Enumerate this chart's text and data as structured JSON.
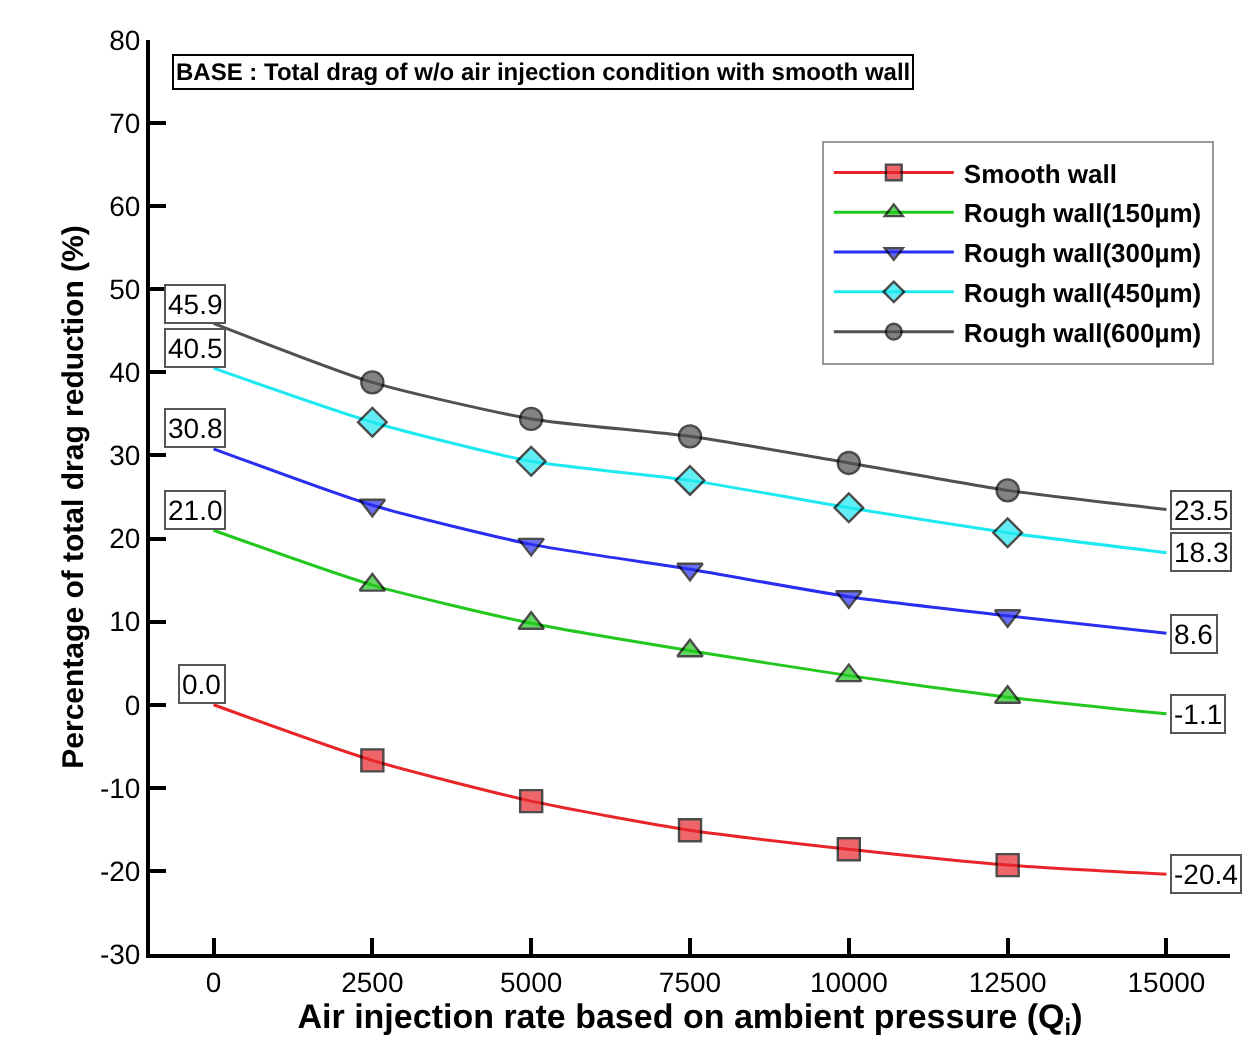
{
  "chart_data": {
    "type": "line",
    "xlabel": "Air injection rate based on ambient pressure (Q$_{i}$)",
    "ylabel": "Percentage of total drag reduction (%)",
    "x": [
      0,
      2500,
      5000,
      7500,
      10000,
      12500,
      15000
    ],
    "series": [
      {
        "name": "Smooth wall",
        "color": "#e8262a",
        "marker": "square",
        "values": [
          0.0,
          -6.7,
          -11.6,
          -15.1,
          -17.4,
          -19.3,
          -20.4
        ],
        "value_labels": [
          "0.0",
          null,
          null,
          null,
          null,
          null,
          "-20.4"
        ]
      },
      {
        "name": "Rough wall(150µm)",
        "color": "#22c81e",
        "marker": "triangle",
        "values": [
          21.0,
          14.4,
          9.8,
          6.5,
          3.5,
          0.9,
          -1.1
        ],
        "value_labels": [
          "21.0",
          null,
          null,
          null,
          null,
          null,
          "-1.1"
        ]
      },
      {
        "name": "Rough wall(300µm)",
        "color": "#2a2ef0",
        "marker": "triangle-down",
        "values": [
          30.8,
          24.0,
          19.3,
          16.3,
          13.0,
          10.7,
          8.6
        ],
        "value_labels": [
          "30.8",
          null,
          null,
          null,
          null,
          null,
          "8.6"
        ]
      },
      {
        "name": "Rough wall(450µm)",
        "color": "#1ee8f0",
        "marker": "diamond",
        "values": [
          40.5,
          34.0,
          29.3,
          27.0,
          23.7,
          20.7,
          18.3
        ],
        "value_labels": [
          "40.5",
          null,
          null,
          null,
          null,
          null,
          "18.3"
        ]
      },
      {
        "name": "Rough wall(600µm)",
        "color": "#505050",
        "marker": "circle",
        "values": [
          45.9,
          38.8,
          34.4,
          32.3,
          29.1,
          25.8,
          23.5
        ],
        "value_labels": [
          "45.9",
          null,
          null,
          null,
          null,
          null,
          "23.5"
        ]
      }
    ],
    "xlim": [
      -1000,
      16000
    ],
    "xticks": [
      0,
      2500,
      5000,
      7500,
      10000,
      12500,
      15000
    ],
    "ylim": [
      -30,
      80
    ],
    "yticks": [
      -30,
      -20,
      -10,
      0,
      10,
      20,
      30,
      40,
      50,
      60,
      70,
      80
    ],
    "legend": "top right",
    "annotations": [
      "BASE : Total drag of w/o air injection condition with smooth wall"
    ]
  }
}
